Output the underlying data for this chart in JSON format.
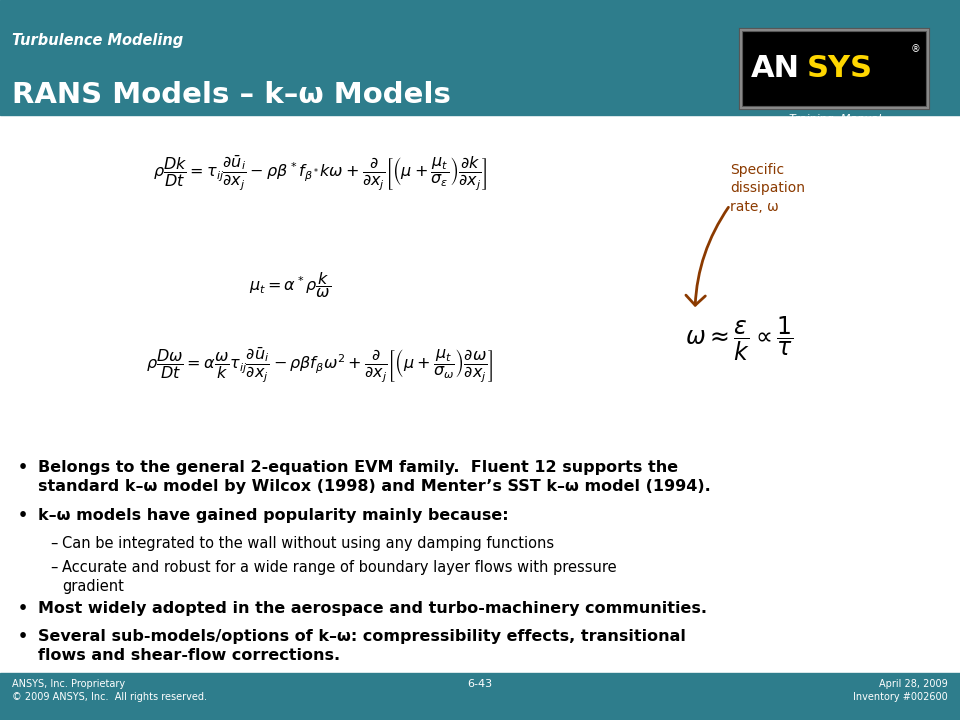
{
  "header_bg": "#2E7D8C",
  "header_title": "Turbulence Modeling",
  "slide_title": "RANS Models – k–ω Models",
  "footer_bg": "#2E7D8C",
  "footer_left": "ANSYS, Inc. Proprietary\n© 2009 ANSYS, Inc.  All rights reserved.",
  "footer_center": "6-43",
  "footer_right": "April 28, 2009\nInventory #002600",
  "body_bg": "#FFFFFF",
  "annotation_color": "#8B3A00",
  "annotation_text": "Specific\ndissipation\nrate, ω",
  "bullet_points": [
    {
      "level": 0,
      "bold": true,
      "text": "Belongs to the general 2-equation EVM family.  Fluent 12 supports the\nstandard k–ω model by Wilcox (1998) and Menter’s SST k–ω model (1994)."
    },
    {
      "level": 0,
      "bold": true,
      "text": "k–ω models have gained popularity mainly because:"
    },
    {
      "level": 1,
      "bold": false,
      "text": "Can be integrated to the wall without using any damping functions"
    },
    {
      "level": 1,
      "bold": false,
      "text": "Accurate and robust for a wide range of boundary layer flows with pressure\ngradient"
    },
    {
      "level": 0,
      "bold": true,
      "text": "Most widely adopted in the aerospace and turbo-machinery communities."
    },
    {
      "level": 0,
      "bold": true,
      "text": "Several sub-models/options of k–ω: compressibility effects, transitional\nflows and shear-flow corrections."
    }
  ],
  "eq1": "$\\rho\\dfrac{Dk}{Dt} = \\tau_{ij}\\dfrac{\\partial\\bar{u}_i}{\\partial x_j} - \\rho\\beta^* f_{\\beta^*} k\\omega + \\dfrac{\\partial}{\\partial x_j}\\left[\\left(\\mu + \\dfrac{\\mu_t}{\\sigma_\\varepsilon}\\right)\\dfrac{\\partial k}{\\partial x_j}\\right]$",
  "eq2": "$\\mu_t = \\alpha^* \\rho\\dfrac{k}{\\omega}$",
  "eq3": "$\\rho\\dfrac{D\\omega}{Dt} = \\alpha\\dfrac{\\omega}{k}\\tau_{ij}\\dfrac{\\partial\\bar{u}_i}{\\partial x_j} - \\rho\\beta f_\\beta\\omega^2 + \\dfrac{\\partial}{\\partial x_j}\\left[\\left(\\mu + \\dfrac{\\mu_t}{\\sigma_\\omega}\\right)\\dfrac{\\partial\\omega}{\\partial x_j}\\right]$",
  "eq_ann": "$\\omega \\approx \\dfrac{\\varepsilon}{k} \\propto \\dfrac{1}{\\tau}$"
}
